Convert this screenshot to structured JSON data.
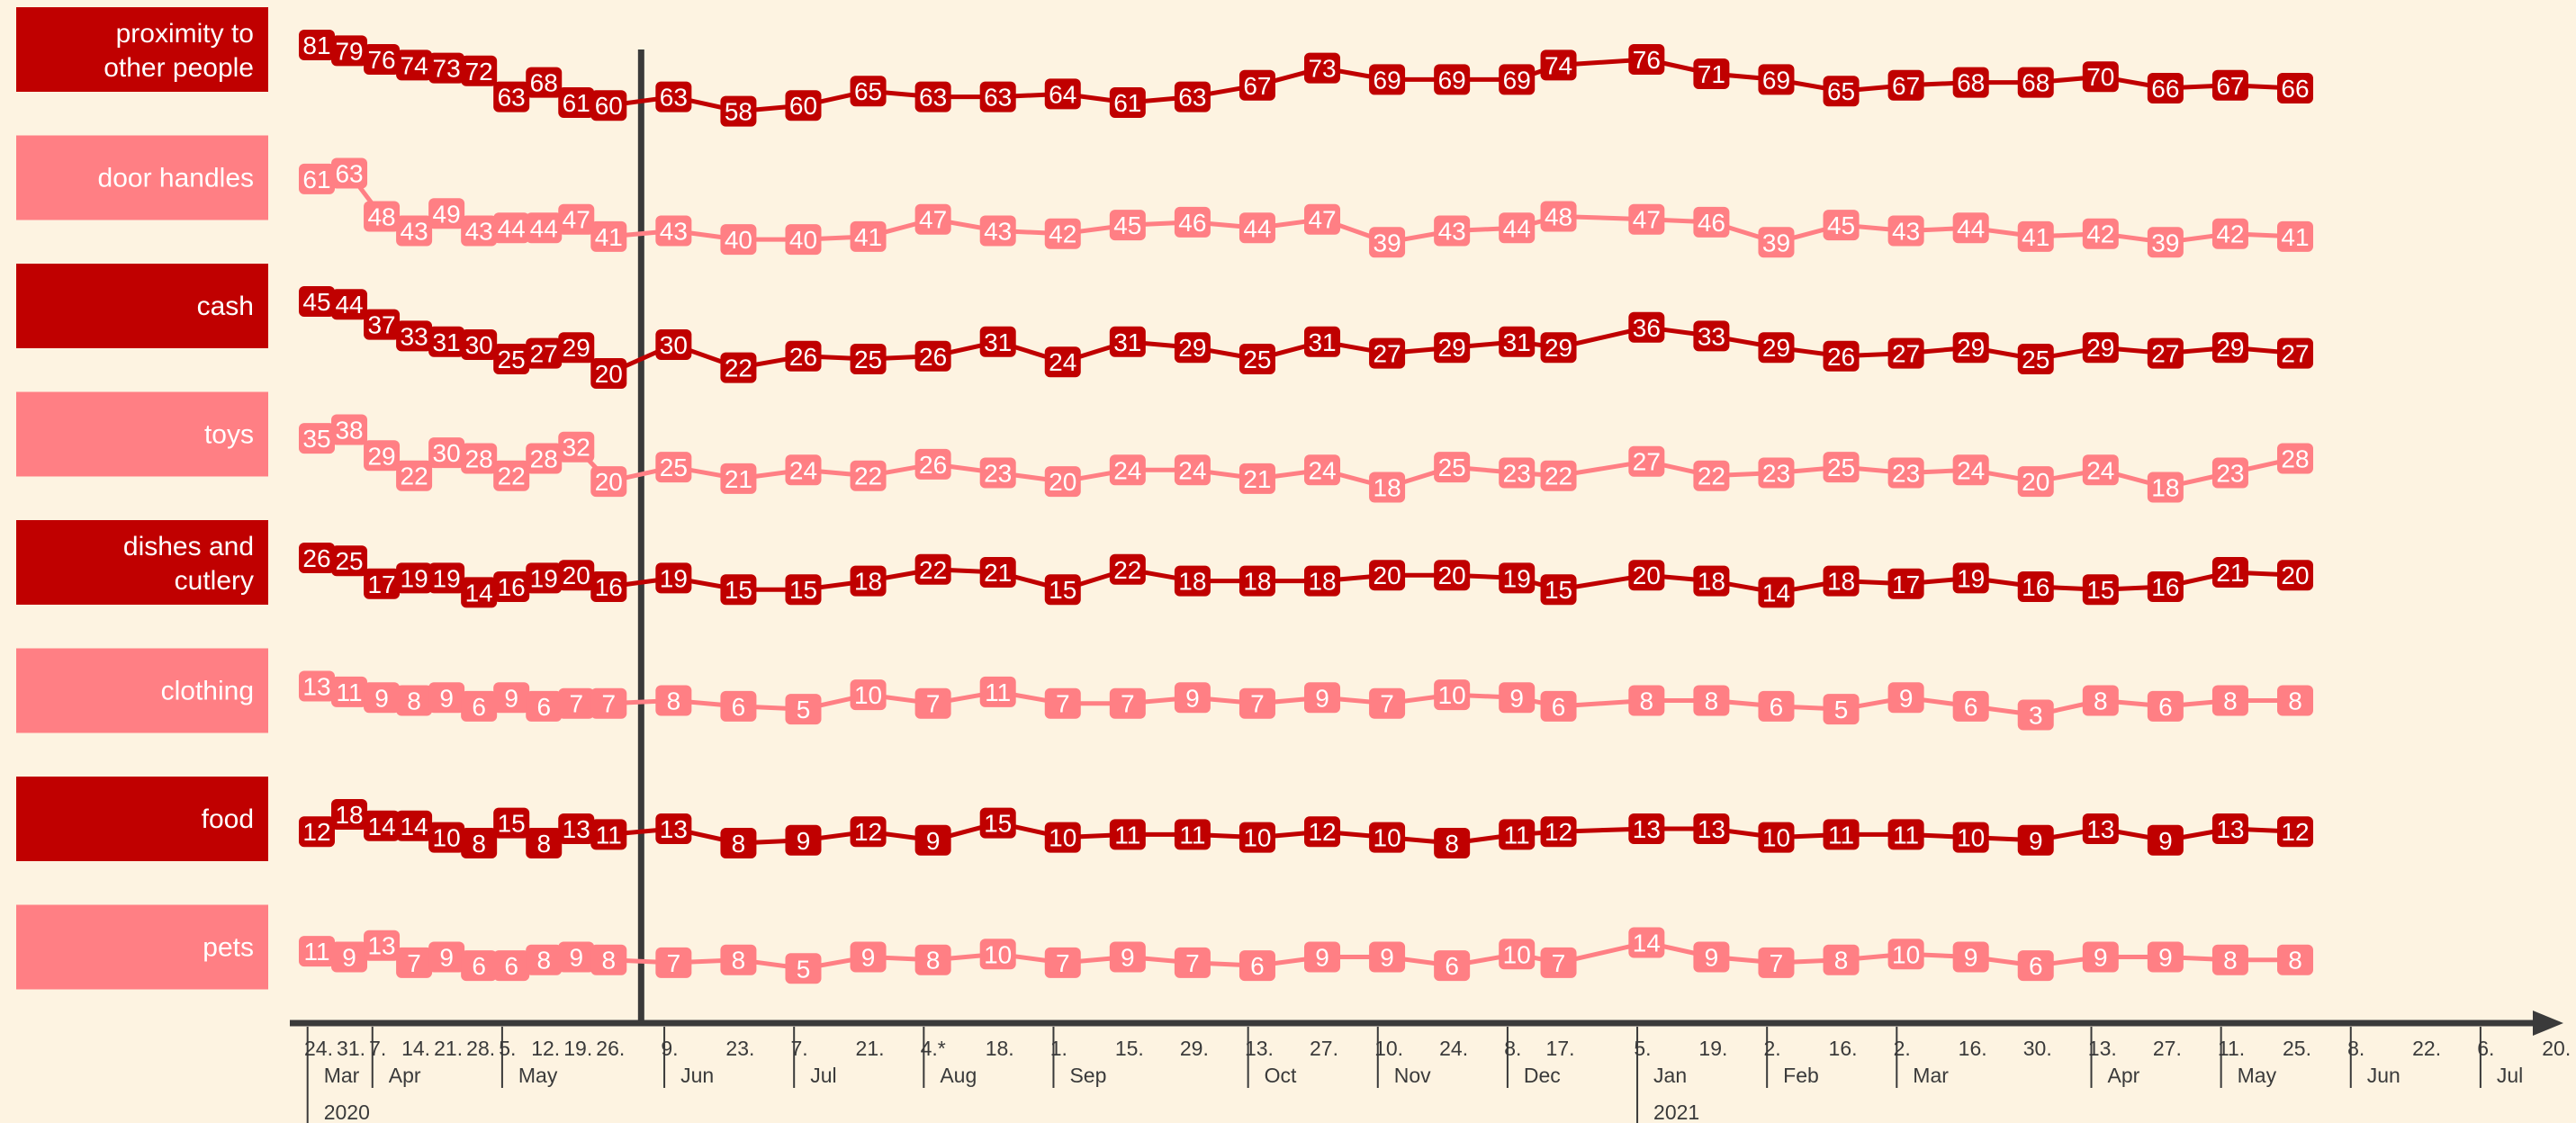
{
  "chart_data": {
    "type": "line",
    "x": [
      "24. Mar 2020",
      "31. Mar 2020",
      "7. Apr 2020",
      "14. Apr 2020",
      "21. Apr 2020",
      "28. Apr 2020",
      "5. May 2020",
      "12. May 2020",
      "19. May 2020",
      "26. May 2020",
      "9. Jun 2020",
      "23. Jun 2020",
      "7. Jul 2020",
      "21. Jul 2020",
      "4. Aug 2020",
      "18. Aug 2020",
      "1. Sep 2020",
      "15. Sep 2020",
      "29. Sep 2020",
      "13. Oct 2020",
      "27. Oct 2020",
      "10. Nov 2020",
      "24. Nov 2020",
      "8. Dec 2020",
      "17. Dec 2020",
      "5. Jan 2021",
      "19. Jan 2021",
      "2. Feb 2021",
      "16. Feb 2021",
      "2. Mar 2021",
      "16. Mar 2021",
      "30. Mar 2021",
      "13. Apr 2021",
      "27. Apr 2021",
      "11. May 2021",
      "25. May 2021"
    ],
    "series": [
      {
        "name": "proximity to other people",
        "color": "#c00000",
        "values": [
          81,
          79,
          76,
          74,
          73,
          72,
          63,
          68,
          61,
          60,
          63,
          58,
          60,
          65,
          63,
          63,
          64,
          61,
          63,
          67,
          73,
          69,
          69,
          69,
          74,
          76,
          71,
          69,
          65,
          67,
          68,
          68,
          70,
          66,
          67,
          66
        ]
      },
      {
        "name": "door handles",
        "color": "#ff7f84",
        "values": [
          61,
          63,
          48,
          43,
          49,
          43,
          44,
          44,
          47,
          41,
          43,
          40,
          40,
          41,
          47,
          43,
          42,
          45,
          46,
          44,
          47,
          39,
          43,
          44,
          48,
          47,
          46,
          39,
          45,
          43,
          44,
          41,
          42,
          39,
          42,
          41
        ]
      },
      {
        "name": "cash",
        "color": "#c00000",
        "values": [
          45,
          44,
          37,
          33,
          31,
          30,
          25,
          27,
          29,
          20,
          30,
          22,
          26,
          25,
          26,
          31,
          24,
          31,
          29,
          25,
          31,
          27,
          29,
          31,
          29,
          36,
          33,
          29,
          26,
          27,
          29,
          25,
          29,
          27,
          29,
          27
        ]
      },
      {
        "name": "toys",
        "color": "#ff7f84",
        "values": [
          35,
          38,
          29,
          22,
          30,
          28,
          22,
          28,
          32,
          20,
          25,
          21,
          24,
          22,
          26,
          23,
          20,
          24,
          24,
          21,
          24,
          18,
          25,
          23,
          22,
          27,
          22,
          23,
          25,
          23,
          24,
          20,
          24,
          18,
          23,
          28
        ]
      },
      {
        "name": "dishes and cutlery",
        "color": "#c00000",
        "values": [
          26,
          25,
          17,
          19,
          19,
          14,
          16,
          19,
          20,
          16,
          19,
          15,
          15,
          18,
          22,
          21,
          15,
          22,
          18,
          18,
          18,
          20,
          20,
          19,
          15,
          20,
          18,
          14,
          18,
          17,
          19,
          16,
          15,
          16,
          21,
          20
        ]
      },
      {
        "name": "clothing",
        "color": "#ff7f84",
        "values": [
          13,
          11,
          9,
          8,
          9,
          6,
          9,
          6,
          7,
          7,
          8,
          6,
          5,
          10,
          7,
          11,
          7,
          7,
          9,
          7,
          9,
          7,
          10,
          9,
          6,
          8,
          8,
          6,
          5,
          9,
          6,
          3,
          8,
          6,
          8,
          8
        ]
      },
      {
        "name": "food",
        "color": "#c00000",
        "values": [
          12,
          18,
          14,
          14,
          10,
          8,
          15,
          8,
          13,
          11,
          13,
          8,
          9,
          12,
          9,
          15,
          10,
          11,
          11,
          10,
          12,
          10,
          8,
          11,
          12,
          13,
          13,
          10,
          11,
          11,
          10,
          9,
          13,
          9,
          13,
          12
        ]
      },
      {
        "name": "pets",
        "color": "#ff7f84",
        "values": [
          11,
          9,
          13,
          7,
          9,
          6,
          6,
          8,
          9,
          8,
          7,
          8,
          5,
          9,
          8,
          10,
          7,
          9,
          7,
          6,
          9,
          9,
          6,
          10,
          7,
          14,
          9,
          7,
          8,
          10,
          9,
          6,
          9,
          9,
          8,
          8
        ]
      }
    ],
    "x_axis": {
      "day_ticks": [
        {
          "date": "2020-03-24",
          "label": "24."
        },
        {
          "date": "2020-03-31",
          "label": "31."
        },
        {
          "date": "2020-04-07",
          "label": "7."
        },
        {
          "date": "2020-04-14",
          "label": "14."
        },
        {
          "date": "2020-04-21",
          "label": "21."
        },
        {
          "date": "2020-04-28",
          "label": "28."
        },
        {
          "date": "2020-05-05",
          "label": "5."
        },
        {
          "date": "2020-05-12",
          "label": "12."
        },
        {
          "date": "2020-05-19",
          "label": "19."
        },
        {
          "date": "2020-05-26",
          "label": "26."
        },
        {
          "date": "2020-06-09",
          "label": "9."
        },
        {
          "date": "2020-06-23",
          "label": "23."
        },
        {
          "date": "2020-07-07",
          "label": "7."
        },
        {
          "date": "2020-07-21",
          "label": "21."
        },
        {
          "date": "2020-08-04",
          "label": "4.*"
        },
        {
          "date": "2020-08-18",
          "label": "18."
        },
        {
          "date": "2020-09-01",
          "label": "1."
        },
        {
          "date": "2020-09-15",
          "label": "15."
        },
        {
          "date": "2020-09-29",
          "label": "29."
        },
        {
          "date": "2020-10-13",
          "label": "13."
        },
        {
          "date": "2020-10-27",
          "label": "27."
        },
        {
          "date": "2020-11-10",
          "label": "10."
        },
        {
          "date": "2020-11-24",
          "label": "24."
        },
        {
          "date": "2020-12-08",
          "label": "8."
        },
        {
          "date": "2020-12-17",
          "label": "17."
        },
        {
          "date": "2021-01-05",
          "label": "5."
        },
        {
          "date": "2021-01-19",
          "label": "19."
        },
        {
          "date": "2021-02-02",
          "label": "2."
        },
        {
          "date": "2021-02-16",
          "label": "16."
        },
        {
          "date": "2021-03-02",
          "label": "2."
        },
        {
          "date": "2021-03-16",
          "label": "16."
        },
        {
          "date": "2021-03-30",
          "label": "30."
        },
        {
          "date": "2021-04-13",
          "label": "13."
        },
        {
          "date": "2021-04-27",
          "label": "27."
        },
        {
          "date": "2021-05-11",
          "label": "11."
        },
        {
          "date": "2021-05-25",
          "label": "25."
        },
        {
          "date": "2021-06-08",
          "label": "8."
        },
        {
          "date": "2021-06-22",
          "label": "22."
        },
        {
          "date": "2021-07-06",
          "label": "6."
        },
        {
          "date": "2021-07-20",
          "label": "20."
        }
      ],
      "months": [
        {
          "start": "2020-03-22",
          "label": "Mar"
        },
        {
          "start": "2020-04-05",
          "label": "Apr"
        },
        {
          "start": "2020-05-03",
          "label": "May"
        },
        {
          "start": "2020-06-07",
          "label": "Jun"
        },
        {
          "start": "2020-07-05",
          "label": "Jul"
        },
        {
          "start": "2020-08-02",
          "label": "Aug"
        },
        {
          "start": "2020-08-30",
          "label": "Sep"
        },
        {
          "start": "2020-10-11",
          "label": "Oct"
        },
        {
          "start": "2020-11-08",
          "label": "Nov"
        },
        {
          "start": "2020-12-06",
          "label": "Dec"
        },
        {
          "start": "2021-01-03",
          "label": "Jan"
        },
        {
          "start": "2021-01-31",
          "label": "Feb"
        },
        {
          "start": "2021-02-28",
          "label": "Mar"
        },
        {
          "start": "2021-04-11",
          "label": "Apr"
        },
        {
          "start": "2021-05-09",
          "label": "May"
        },
        {
          "start": "2021-06-06",
          "label": "Jun"
        },
        {
          "start": "2021-07-04",
          "label": "Jul"
        }
      ],
      "years": [
        {
          "start": "2020-03-22",
          "label": "2020"
        },
        {
          "start": "2021-01-03",
          "label": "2021"
        }
      ],
      "range": [
        "2020-03-22",
        "2021-07-31"
      ]
    },
    "reference_line_date": "2020-06-02",
    "title": "",
    "xlabel": "",
    "ylabel": "",
    "grid": false,
    "legend": "left"
  }
}
